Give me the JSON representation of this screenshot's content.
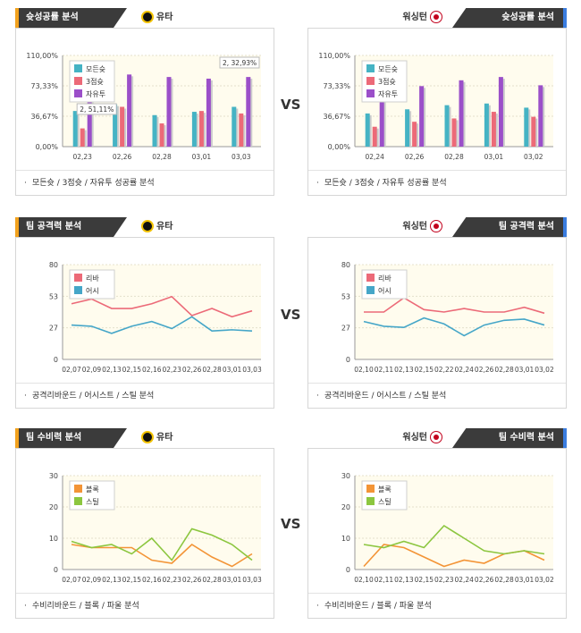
{
  "vs_label": "VS",
  "rows": [
    {
      "left": {
        "tab": "슛성공률 분석",
        "team": "유타",
        "footer": "모든슛 / 3점슛 / 자유투 성공률 분석",
        "chart_data": {
          "type": "bar",
          "categories": [
            "02,23",
            "02,26",
            "02,28",
            "03,01",
            "03,03"
          ],
          "yticks": [
            "110,00%",
            "73,33%",
            "36,67%",
            "0,00%"
          ],
          "ylim": [
            0,
            110
          ],
          "series": [
            {
              "name": "모든슛",
              "color": "#45b3c4",
              "values": [
                43,
                51,
                38,
                42,
                48
              ]
            },
            {
              "name": "3점슛",
              "color": "#ec6a78",
              "values": [
                22,
                48,
                28,
                43,
                40
              ]
            },
            {
              "name": "자유투",
              "color": "#9b4fc9",
              "values": [
                60,
                87,
                84,
                82,
                84
              ]
            }
          ],
          "annotations": [
            {
              "text": "2, 51,11%",
              "category": "02,23"
            },
            {
              "text": "2, 32,93%",
              "category": "03,03"
            }
          ]
        }
      },
      "right": {
        "tab": "슛성공률 분석",
        "team": "워싱턴",
        "footer": "모든슛 / 3점슛 / 자유투 성공률 분석",
        "chart_data": {
          "type": "bar",
          "categories": [
            "02,24",
            "02,26",
            "02,28",
            "03,01",
            "03,02"
          ],
          "yticks": [
            "110,00%",
            "73,33%",
            "36,67%",
            "0,00%"
          ],
          "ylim": [
            0,
            110
          ],
          "series": [
            {
              "name": "모든슛",
              "color": "#45b3c4",
              "values": [
                40,
                45,
                50,
                52,
                47
              ]
            },
            {
              "name": "3점슛",
              "color": "#ec6a78",
              "values": [
                24,
                30,
                34,
                42,
                36
              ]
            },
            {
              "name": "자유투",
              "color": "#9b4fc9",
              "values": [
                65,
                73,
                80,
                84,
                74
              ]
            }
          ]
        }
      }
    },
    {
      "left": {
        "tab": "팀 공격력 분석",
        "team": "유타",
        "footer": "공격리바운드 / 어시스트 / 스틸 분석",
        "chart_data": {
          "type": "line",
          "categories": [
            "02,07",
            "02,09",
            "02,13",
            "02,15",
            "02,16",
            "02,23",
            "02,26",
            "02,28",
            "03,01",
            "03,03"
          ],
          "yticks": [
            "80",
            "53",
            "27",
            "0"
          ],
          "ylim": [
            0,
            80
          ],
          "series": [
            {
              "name": "리바",
              "color": "#ec6a78",
              "values": [
                47,
                51,
                43,
                43,
                47,
                53,
                37,
                43,
                36,
                41
              ]
            },
            {
              "name": "어시",
              "color": "#45a6c8",
              "values": [
                29,
                28,
                22,
                28,
                32,
                26,
                36,
                24,
                25,
                24
              ]
            }
          ]
        }
      },
      "right": {
        "tab": "팀 공격력 분석",
        "team": "워싱턴",
        "footer": "공격리바운드 / 어시스트 / 스틸 분석",
        "chart_data": {
          "type": "line",
          "categories": [
            "02,10",
            "02,11",
            "02,13",
            "02,15",
            "02,22",
            "02,24",
            "02,26",
            "02,28",
            "03,01",
            "03,02"
          ],
          "yticks": [
            "80",
            "53",
            "27",
            "0"
          ],
          "ylim": [
            0,
            80
          ],
          "series": [
            {
              "name": "리바",
              "color": "#ec6a78",
              "values": [
                40,
                40,
                52,
                42,
                40,
                43,
                40,
                40,
                44,
                39
              ]
            },
            {
              "name": "어시",
              "color": "#45a6c8",
              "values": [
                32,
                28,
                27,
                35,
                30,
                20,
                29,
                33,
                34,
                29
              ]
            }
          ]
        }
      }
    },
    {
      "left": {
        "tab": "팀 수비력 분석",
        "team": "유타",
        "footer": "수비리바운드 / 블록 / 파울 분석",
        "chart_data": {
          "type": "line",
          "categories": [
            "02,07",
            "02,09",
            "02,13",
            "02,15",
            "02,16",
            "02,23",
            "02,26",
            "02,28",
            "03,01",
            "03,03"
          ],
          "yticks": [
            "30",
            "20",
            "10",
            "0"
          ],
          "ylim": [
            0,
            30
          ],
          "series": [
            {
              "name": "블록",
              "color": "#f39436",
              "values": [
                8,
                7,
                7,
                7,
                3,
                2,
                8,
                4,
                1,
                5
              ]
            },
            {
              "name": "스틸",
              "color": "#8cc63f",
              "values": [
                9,
                7,
                8,
                5,
                10,
                3,
                13,
                11,
                8,
                3
              ]
            }
          ]
        }
      },
      "right": {
        "tab": "팀 수비력 분석",
        "team": "워싱턴",
        "footer": "수비리바운드 / 블록 / 파울 분석",
        "chart_data": {
          "type": "line",
          "categories": [
            "02,10",
            "02,11",
            "02,13",
            "02,15",
            "02,23",
            "02,24",
            "02,26",
            "02,28",
            "03,01",
            "03,02"
          ],
          "yticks": [
            "30",
            "20",
            "10",
            "0"
          ],
          "ylim": [
            0,
            30
          ],
          "series": [
            {
              "name": "블록",
              "color": "#f39436",
              "values": [
                1,
                8,
                7,
                4,
                1,
                3,
                2,
                5,
                6,
                3
              ]
            },
            {
              "name": "스틸",
              "color": "#8cc63f",
              "values": [
                8,
                7,
                9,
                7,
                14,
                10,
                6,
                5,
                6,
                5
              ]
            }
          ]
        }
      }
    }
  ]
}
